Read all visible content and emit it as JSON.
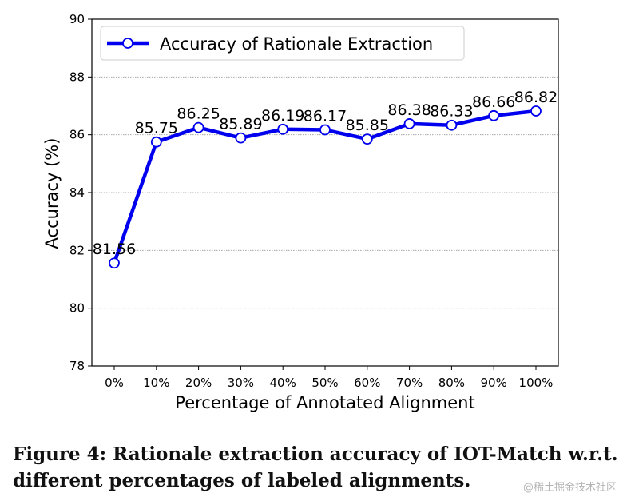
{
  "chart_data": {
    "type": "line",
    "categories": [
      "0%",
      "10%",
      "20%",
      "30%",
      "40%",
      "50%",
      "60%",
      "70%",
      "80%",
      "90%",
      "100%"
    ],
    "series": [
      {
        "name": "Accuracy of Rationale Extraction",
        "values": [
          81.56,
          85.75,
          86.25,
          85.89,
          86.19,
          86.17,
          85.85,
          86.38,
          86.33,
          86.66,
          86.82
        ],
        "labels": [
          "81.56",
          "85.75",
          "86.25",
          "85.89",
          "86.19",
          "86.17",
          "85.85",
          "86.38",
          "86.33",
          "86.66",
          "86.82"
        ],
        "color": "#0000ee"
      }
    ],
    "xlabel": "Percentage of Annotated Alignment",
    "ylabel": "Accuracy (%)",
    "ylim": [
      78,
      90
    ],
    "yticks": [
      78,
      80,
      82,
      84,
      86,
      88,
      90
    ],
    "grid": "horizontal-dotted",
    "legend": "top-left"
  },
  "caption": {
    "line1": "Figure 4: Rationale extraction accuracy of IOT-Match w.r.t.",
    "line2": "different percentages of labeled alignments."
  },
  "watermark": "@稀土掘金技术社区"
}
